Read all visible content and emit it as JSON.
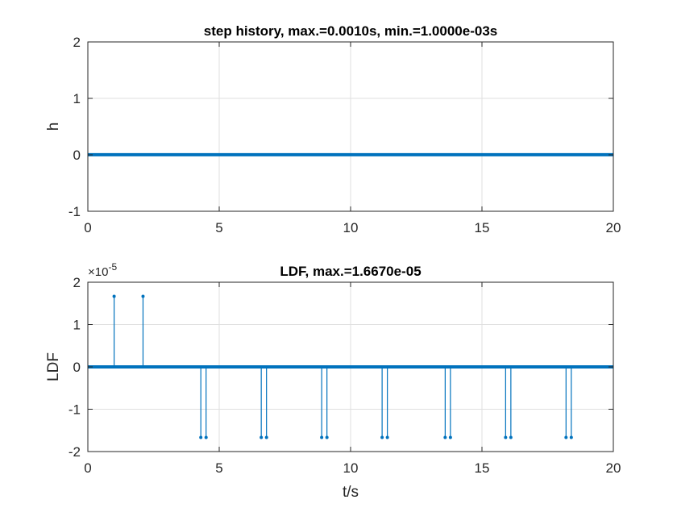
{
  "chart_data": [
    {
      "type": "line",
      "title": "step history, max.=0.0010s, min.=1.0000e-03s",
      "xlabel": "",
      "ylabel": "h",
      "xlim": [
        0,
        20
      ],
      "ylim": [
        -1,
        2
      ],
      "xticks": [
        "0",
        "5",
        "10",
        "15",
        "20"
      ],
      "yticks": [
        "-1",
        "0",
        "1",
        "2"
      ],
      "grid": true,
      "color": "#0072BD",
      "series": [
        {
          "x": [
            0,
            20
          ],
          "y": [
            0.001,
            0.001
          ]
        }
      ]
    },
    {
      "type": "stem",
      "title": "LDF, max.=1.6670e-05",
      "xlabel": "t/s",
      "ylabel": "LDF",
      "xlim": [
        0,
        20
      ],
      "ylim": [
        -2e-05,
        2e-05
      ],
      "xticks": [
        "0",
        "5",
        "10",
        "15",
        "20"
      ],
      "yticks": [
        "-2",
        "-1",
        "0",
        "1",
        "2"
      ],
      "y_exponent_base": "×10",
      "y_exponent": "-5",
      "grid": true,
      "color": "#0072BD",
      "baseline": {
        "x": [
          0,
          20
        ],
        "y": 0
      },
      "stems": [
        {
          "x": 1.0,
          "y": 1.667e-05
        },
        {
          "x": 2.1,
          "y": 1.667e-05
        },
        {
          "x": 4.3,
          "y": -1.667e-05
        },
        {
          "x": 4.5,
          "y": -1.667e-05
        },
        {
          "x": 6.6,
          "y": -1.667e-05
        },
        {
          "x": 6.8,
          "y": -1.667e-05
        },
        {
          "x": 8.9,
          "y": -1.667e-05
        },
        {
          "x": 9.1,
          "y": -1.667e-05
        },
        {
          "x": 11.2,
          "y": -1.667e-05
        },
        {
          "x": 11.4,
          "y": -1.667e-05
        },
        {
          "x": 13.6,
          "y": -1.667e-05
        },
        {
          "x": 13.8,
          "y": -1.667e-05
        },
        {
          "x": 15.9,
          "y": -1.667e-05
        },
        {
          "x": 16.1,
          "y": -1.667e-05
        },
        {
          "x": 18.2,
          "y": -1.667e-05
        },
        {
          "x": 18.4,
          "y": -1.667e-05
        }
      ]
    }
  ]
}
